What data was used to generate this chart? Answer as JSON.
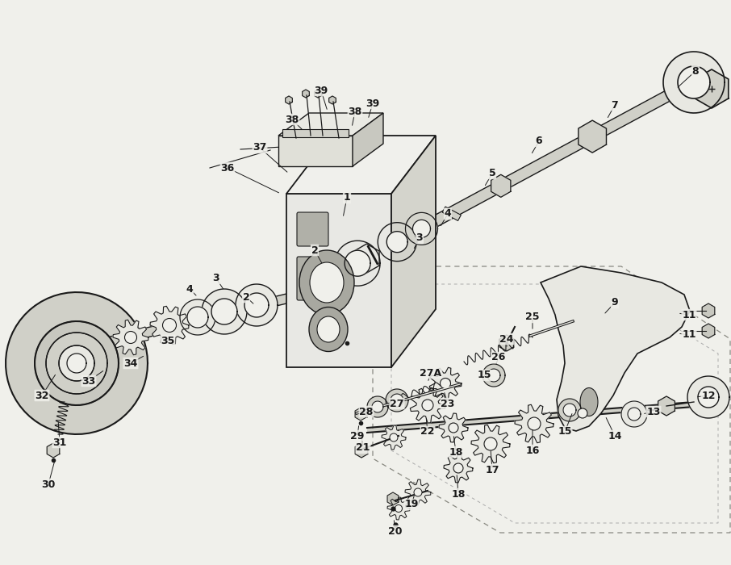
{
  "bg_color": "#f0f0eb",
  "line_color": "#1a1a1a",
  "fill_light": "#e8e8e2",
  "fill_mid": "#d0d0c8",
  "fill_dark": "#b8b8b0",
  "figsize": [
    9.06,
    7.0
  ],
  "dpi": 100,
  "label_fs": 9,
  "label_fw": "bold",
  "labels": [
    [
      "1",
      430,
      245
    ],
    [
      "2",
      390,
      310
    ],
    [
      "3",
      520,
      295
    ],
    [
      "4",
      555,
      265
    ],
    [
      "5",
      610,
      215
    ],
    [
      "6",
      668,
      175
    ],
    [
      "7",
      762,
      130
    ],
    [
      "8",
      862,
      88
    ],
    [
      "9",
      762,
      375
    ],
    [
      "11",
      854,
      390
    ],
    [
      "11",
      854,
      415
    ],
    [
      "12",
      878,
      490
    ],
    [
      "13",
      810,
      510
    ],
    [
      "14",
      762,
      540
    ],
    [
      "15",
      600,
      465
    ],
    [
      "15",
      700,
      535
    ],
    [
      "16",
      660,
      558
    ],
    [
      "17",
      610,
      582
    ],
    [
      "18",
      565,
      560
    ],
    [
      "18",
      568,
      612
    ],
    [
      "19",
      510,
      625
    ],
    [
      "20",
      490,
      658
    ],
    [
      "21",
      450,
      555
    ],
    [
      "22",
      530,
      535
    ],
    [
      "23",
      555,
      500
    ],
    [
      "24",
      628,
      420
    ],
    [
      "25",
      660,
      393
    ],
    [
      "26",
      618,
      443
    ],
    [
      "27",
      492,
      500
    ],
    [
      "27A",
      534,
      462
    ],
    [
      "28",
      454,
      510
    ],
    [
      "29",
      443,
      540
    ],
    [
      "30",
      60,
      600
    ],
    [
      "31",
      74,
      548
    ],
    [
      "32",
      52,
      490
    ],
    [
      "33",
      110,
      472
    ],
    [
      "34",
      162,
      450
    ],
    [
      "35",
      208,
      422
    ],
    [
      "36",
      282,
      208
    ],
    [
      "37",
      322,
      183
    ],
    [
      "38",
      362,
      148
    ],
    [
      "38",
      440,
      138
    ],
    [
      "39",
      398,
      112
    ],
    [
      "39",
      462,
      128
    ],
    [
      "2",
      305,
      368
    ],
    [
      "3",
      268,
      345
    ],
    [
      "4",
      235,
      358
    ]
  ]
}
